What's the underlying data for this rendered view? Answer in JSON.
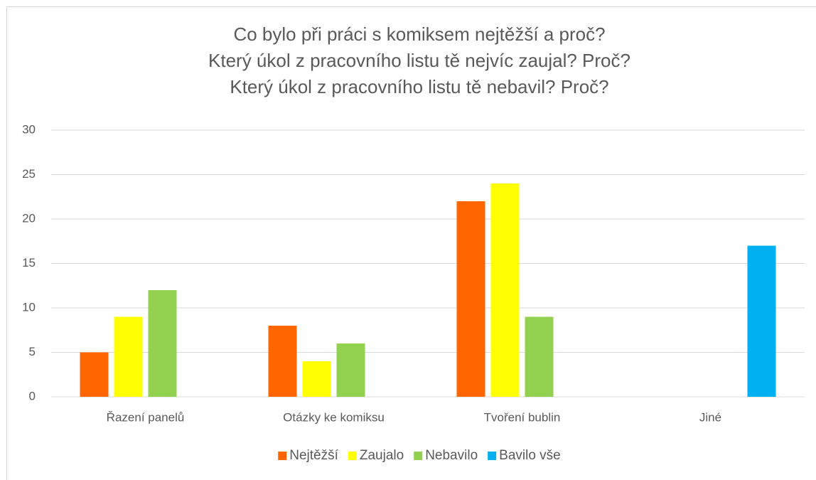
{
  "chart_data": {
    "type": "bar",
    "title": [
      "Co bylo při práci s komiksem nejtěžší a proč?",
      "Který úkol z pracovního listu tě nejvíc zaujal? Proč?",
      "Který úkol z pracovního listu tě nebavil? Proč?"
    ],
    "categories": [
      "Řazení panelů",
      "Otázky ke komiksu",
      "Tvoření bublin",
      "Jiné"
    ],
    "series": [
      {
        "name": "Nejtěžší",
        "color": "#ff6600",
        "values": [
          5,
          8,
          22,
          0
        ]
      },
      {
        "name": "Zaujalo",
        "color": "#ffff00",
        "values": [
          9,
          4,
          24,
          0
        ]
      },
      {
        "name": "Nebavilo",
        "color": "#92d050",
        "values": [
          12,
          6,
          9,
          0
        ]
      },
      {
        "name": "Bavilo vše",
        "color": "#00b0f0",
        "values": [
          0,
          0,
          0,
          17
        ]
      }
    ],
    "ylim": [
      0,
      30
    ],
    "yticks": [
      0,
      5,
      10,
      15,
      20,
      25,
      30
    ],
    "grid": true,
    "legend": "bottom"
  }
}
